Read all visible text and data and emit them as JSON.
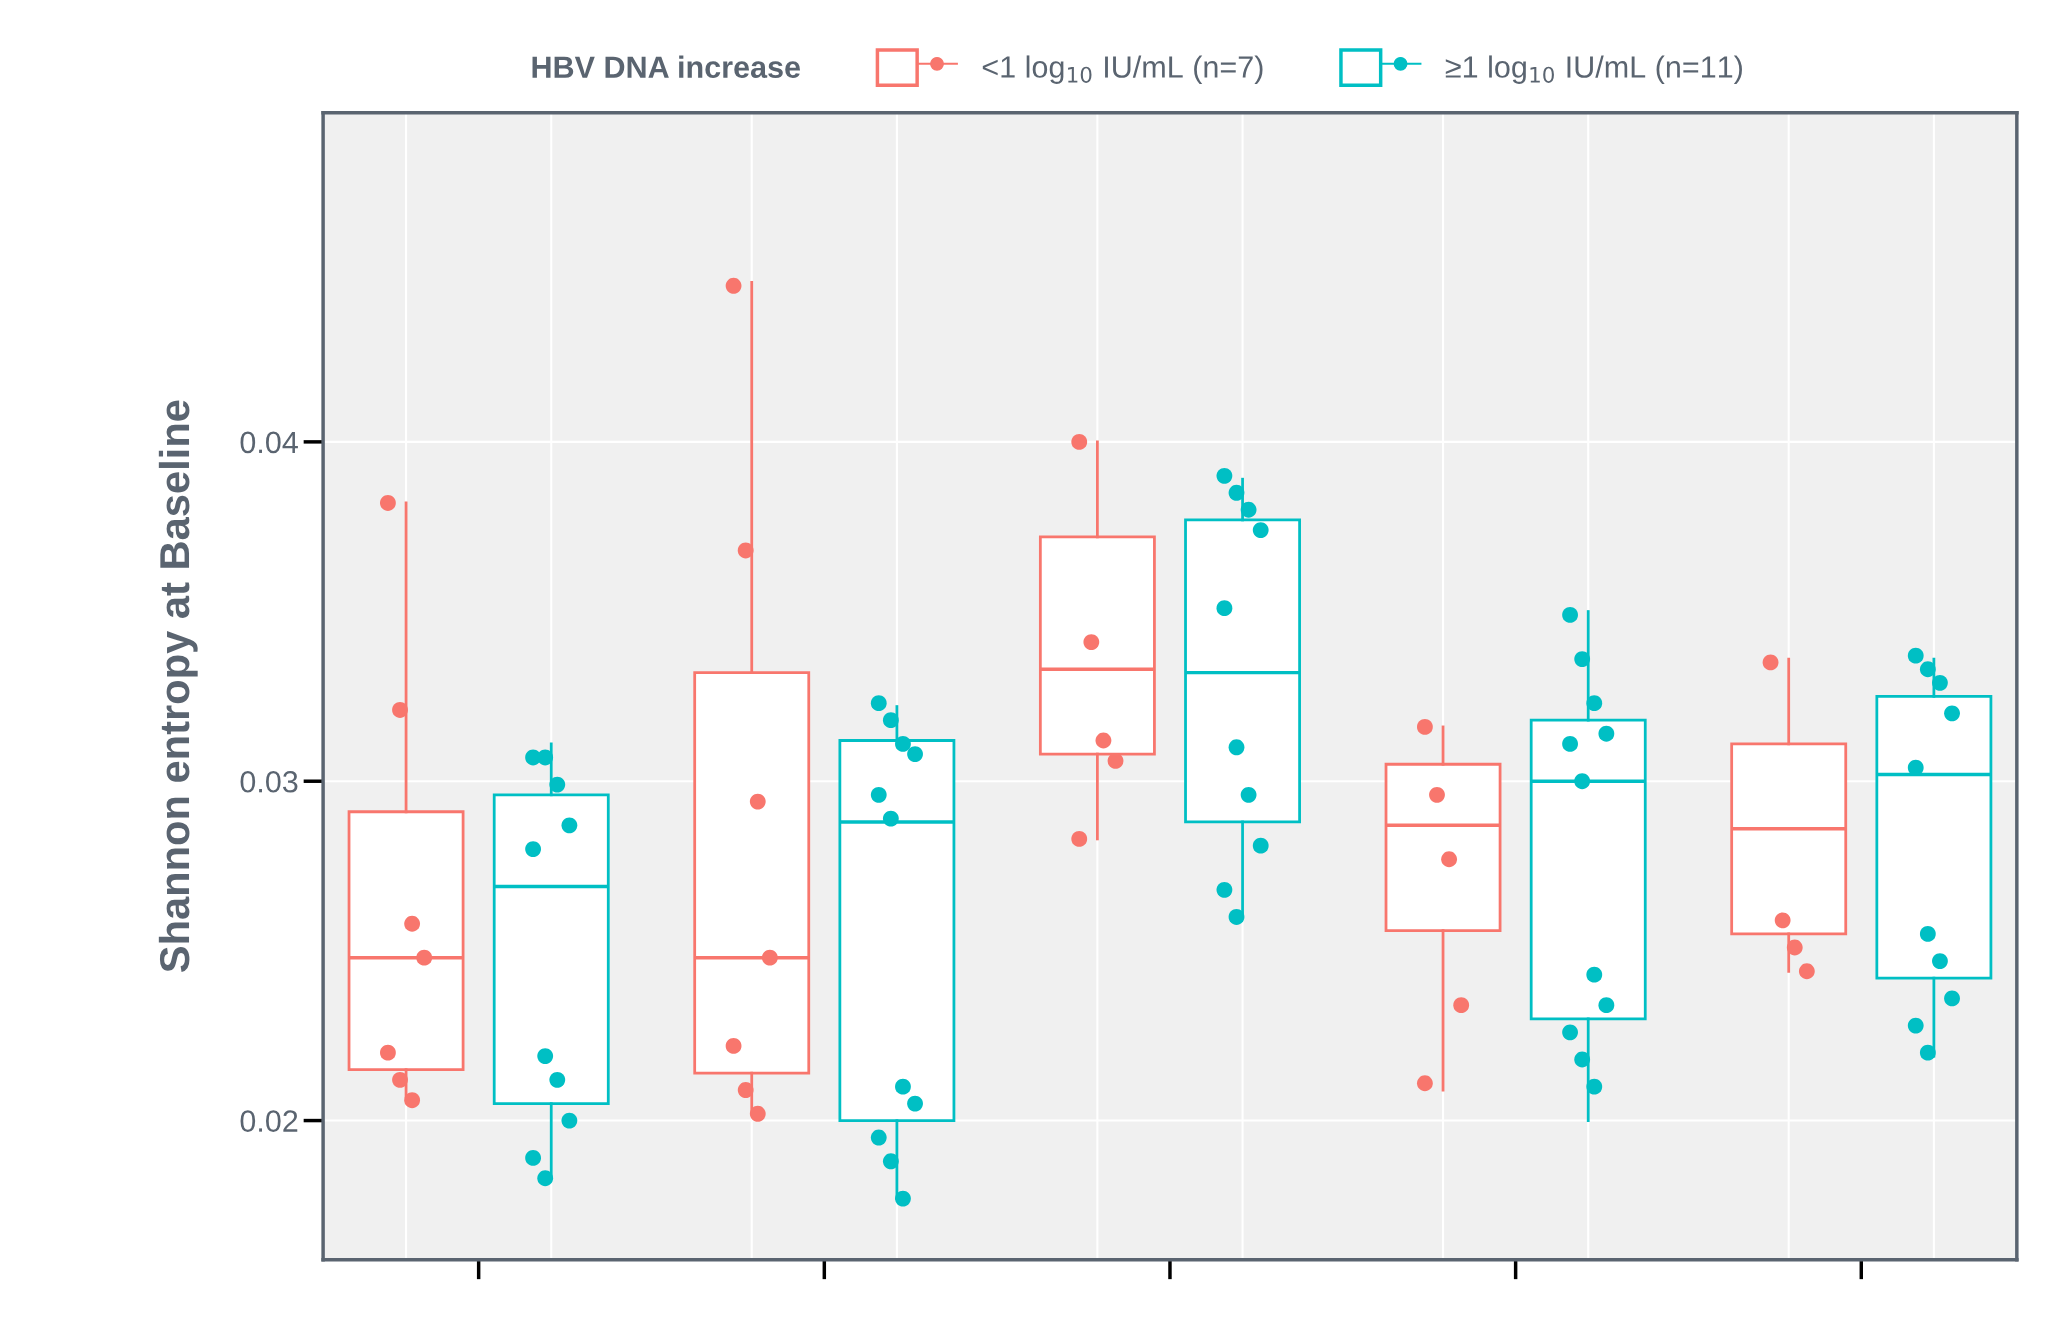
{
  "chart_data": {
    "type": "box",
    "ylabel": "Shannon entropy at Baseline",
    "legend_title": "HBV DNA increase",
    "categories": [
      null,
      null,
      null,
      null,
      null
    ],
    "ylim": [
      0.0159,
      0.0497
    ],
    "yticks": [
      0.02,
      0.03,
      0.04
    ],
    "grid": true,
    "legend": "top",
    "series": [
      {
        "name": "<1 log$_{10}$ IU/mL (n=7)",
        "color": "#f8766d",
        "boxes": [
          {
            "low": 0.0207,
            "q1": 0.0215,
            "median": 0.0248,
            "q3": 0.0291,
            "high": 0.0382
          },
          {
            "low": 0.0202,
            "q1": 0.0214,
            "median": 0.0248,
            "q3": 0.0332,
            "high": 0.0447
          },
          {
            "low": 0.0283,
            "q1": 0.0308,
            "median": 0.0333,
            "q3": 0.0372,
            "high": 0.04
          },
          {
            "low": 0.0209,
            "q1": 0.0256,
            "median": 0.0287,
            "q3": 0.0305,
            "high": 0.0316
          },
          {
            "low": 0.0244,
            "q1": 0.0255,
            "median": 0.0286,
            "q3": 0.0311,
            "high": 0.0336
          }
        ]
      },
      {
        "name": "≥1 log$_{10}$ IU/mL (n=11)",
        "color": "#00bfc4",
        "boxes": [
          {
            "low": 0.0183,
            "q1": 0.0205,
            "median": 0.0269,
            "q3": 0.0296,
            "high": 0.0311
          },
          {
            "low": 0.0177,
            "q1": 0.02,
            "median": 0.0288,
            "q3": 0.0312,
            "high": 0.0322
          },
          {
            "low": 0.026,
            "q1": 0.0288,
            "median": 0.0332,
            "q3": 0.0377,
            "high": 0.0389
          },
          {
            "low": 0.02,
            "q1": 0.023,
            "median": 0.03,
            "q3": 0.0318,
            "high": 0.035
          },
          {
            "low": 0.0219,
            "q1": 0.0242,
            "median": 0.0302,
            "q3": 0.0325,
            "high": 0.0336
          }
        ]
      },
      {
        "type": "scatter",
        "color": "#f8766d",
        "values": [
          0.0382,
          0.0446,
          0.04,
          0.0316,
          0.0335
        ]
      },
      {
        "type": "scatter",
        "color": "#f8766d",
        "values": [
          0.0321,
          0.0368,
          0.0341,
          0.0296,
          0.0259
        ]
      },
      {
        "type": "scatter",
        "color": "#f8766d",
        "values": [
          0.0258,
          0.0294,
          0.0312,
          0.0277,
          0.0251
        ]
      },
      {
        "type": "scatter",
        "color": "#f8766d",
        "values": [
          0.0248,
          0.0248,
          0.0306,
          0.0234,
          0.0244
        ]
      },
      {
        "type": "scatter",
        "color": "#f8766d",
        "values": [
          0.022,
          0.0222,
          0.0283,
          0.0211,
          null
        ]
      },
      {
        "type": "scatter",
        "color": "#f8766d",
        "values": [
          0.0212,
          0.0209,
          null,
          null,
          null
        ]
      },
      {
        "type": "scatter",
        "color": "#f8766d",
        "values": [
          0.0206,
          0.0202,
          null,
          null,
          null
        ]
      },
      {
        "type": "scatter",
        "color": "#00bfc4",
        "values": [
          0.0307,
          0.0323,
          0.039,
          0.0349,
          0.0337
        ]
      },
      {
        "type": "scatter",
        "color": "#00bfc4",
        "values": [
          0.0307,
          0.0318,
          0.0385,
          0.0336,
          0.0333
        ]
      },
      {
        "type": "scatter",
        "color": "#00bfc4",
        "values": [
          0.0299,
          0.0311,
          0.038,
          0.0323,
          0.0329
        ]
      },
      {
        "type": "scatter",
        "color": "#00bfc4",
        "values": [
          0.0287,
          0.0308,
          0.0374,
          0.0314,
          0.032
        ]
      },
      {
        "type": "scatter",
        "color": "#00bfc4",
        "values": [
          0.028,
          0.0296,
          0.0351,
          0.0311,
          0.0304
        ]
      },
      {
        "type": "scatter",
        "color": "#00bfc4",
        "values": [
          0.0219,
          0.0289,
          0.031,
          0.03,
          0.0255
        ]
      },
      {
        "type": "scatter",
        "color": "#00bfc4",
        "values": [
          0.0212,
          0.021,
          0.0296,
          0.0243,
          0.0247
        ]
      },
      {
        "type": "scatter",
        "color": "#00bfc4",
        "values": [
          0.02,
          0.0205,
          0.0281,
          0.0234,
          0.0236
        ]
      },
      {
        "type": "scatter",
        "color": "#00bfc4",
        "values": [
          0.0189,
          0.0195,
          0.0268,
          0.0226,
          0.0228
        ]
      },
      {
        "type": "scatter",
        "color": "#00bfc4",
        "values": [
          0.0183,
          0.0188,
          0.026,
          0.0218,
          0.022
        ]
      },
      {
        "type": "scatter",
        "color": "#00bfc4",
        "values": [
          null,
          0.0177,
          null,
          0.021,
          null
        ]
      }
    ]
  }
}
